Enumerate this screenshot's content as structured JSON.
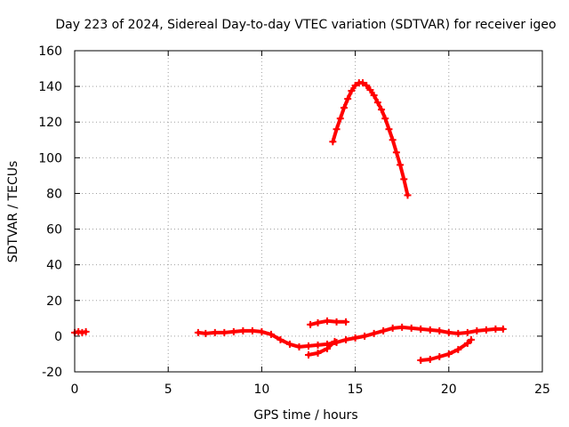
{
  "chart_data": {
    "type": "scatter",
    "title": "Day 223 of 2024, Sidereal Day-to-day VTEC variation (SDTVAR) for receiver igeo",
    "xlabel": "GPS time / hours",
    "ylabel": "SDTVAR / TECUs",
    "xlim": [
      0,
      25
    ],
    "ylim": [
      -20,
      160
    ],
    "xticks": [
      0,
      5,
      10,
      15,
      20,
      25
    ],
    "yticks": [
      -20,
      0,
      20,
      40,
      60,
      80,
      100,
      120,
      140,
      160
    ],
    "grid": true,
    "color": "#ff0000",
    "series": [
      {
        "values": [
          {
            "x": 13.8,
            "y": 109
          },
          {
            "x": 14.0,
            "y": 116
          },
          {
            "x": 14.2,
            "y": 122
          },
          {
            "x": 14.4,
            "y": 128
          },
          {
            "x": 14.6,
            "y": 133
          },
          {
            "x": 14.8,
            "y": 137.5
          },
          {
            "x": 15.0,
            "y": 140.5
          },
          {
            "x": 15.2,
            "y": 142
          },
          {
            "x": 15.4,
            "y": 142
          },
          {
            "x": 15.6,
            "y": 140.5
          },
          {
            "x": 15.8,
            "y": 138
          },
          {
            "x": 16.0,
            "y": 135
          },
          {
            "x": 16.2,
            "y": 131
          },
          {
            "x": 16.4,
            "y": 127
          },
          {
            "x": 16.6,
            "y": 122
          },
          {
            "x": 16.8,
            "y": 116
          },
          {
            "x": 17.0,
            "y": 110
          },
          {
            "x": 17.2,
            "y": 103
          },
          {
            "x": 17.4,
            "y": 96
          },
          {
            "x": 17.6,
            "y": 88
          },
          {
            "x": 17.8,
            "y": 79
          }
        ]
      },
      {
        "values": [
          {
            "x": 0.0,
            "y": 2
          },
          {
            "x": 0.2,
            "y": 2.5
          },
          {
            "x": 0.4,
            "y": 2
          },
          {
            "x": 0.6,
            "y": 2.5
          }
        ]
      },
      {
        "values": [
          {
            "x": 6.6,
            "y": 2
          },
          {
            "x": 7.0,
            "y": 1.5
          },
          {
            "x": 7.5,
            "y": 2
          },
          {
            "x": 8.0,
            "y": 2
          },
          {
            "x": 8.5,
            "y": 2.5
          },
          {
            "x": 9.0,
            "y": 3
          },
          {
            "x": 9.5,
            "y": 3
          },
          {
            "x": 10.0,
            "y": 2.5
          },
          {
            "x": 10.5,
            "y": 1
          },
          {
            "x": 11.0,
            "y": -2
          },
          {
            "x": 11.5,
            "y": -4.5
          },
          {
            "x": 12.0,
            "y": -6
          },
          {
            "x": 12.5,
            "y": -5.5
          },
          {
            "x": 13.0,
            "y": -5
          },
          {
            "x": 13.5,
            "y": -4.5
          },
          {
            "x": 14.0,
            "y": -3.5
          },
          {
            "x": 14.5,
            "y": -2
          },
          {
            "x": 15.0,
            "y": -1
          },
          {
            "x": 15.5,
            "y": 0
          },
          {
            "x": 16.0,
            "y": 1.5
          },
          {
            "x": 16.5,
            "y": 3
          },
          {
            "x": 17.0,
            "y": 4.5
          },
          {
            "x": 17.5,
            "y": 5
          },
          {
            "x": 18.0,
            "y": 4.5
          },
          {
            "x": 18.5,
            "y": 4
          },
          {
            "x": 19.0,
            "y": 3.5
          },
          {
            "x": 19.5,
            "y": 3
          },
          {
            "x": 20.0,
            "y": 2
          },
          {
            "x": 20.5,
            "y": 1.5
          },
          {
            "x": 21.0,
            "y": 2
          },
          {
            "x": 21.5,
            "y": 3
          },
          {
            "x": 22.0,
            "y": 3.5
          },
          {
            "x": 22.5,
            "y": 4
          },
          {
            "x": 22.9,
            "y": 4
          }
        ]
      },
      {
        "values": [
          {
            "x": 12.6,
            "y": 6.5
          },
          {
            "x": 13.0,
            "y": 7.5
          },
          {
            "x": 13.5,
            "y": 8.5
          },
          {
            "x": 14.0,
            "y": 8
          },
          {
            "x": 14.5,
            "y": 8
          }
        ]
      },
      {
        "values": [
          {
            "x": 12.5,
            "y": -10.5
          },
          {
            "x": 13.0,
            "y": -9.5
          },
          {
            "x": 13.5,
            "y": -7
          },
          {
            "x": 13.9,
            "y": -3
          }
        ]
      },
      {
        "values": [
          {
            "x": 18.5,
            "y": -13.5
          },
          {
            "x": 19.0,
            "y": -13
          },
          {
            "x": 19.5,
            "y": -11.5
          },
          {
            "x": 20.0,
            "y": -10
          },
          {
            "x": 20.5,
            "y": -7.5
          },
          {
            "x": 21.0,
            "y": -4
          },
          {
            "x": 21.2,
            "y": -2
          }
        ]
      }
    ]
  }
}
